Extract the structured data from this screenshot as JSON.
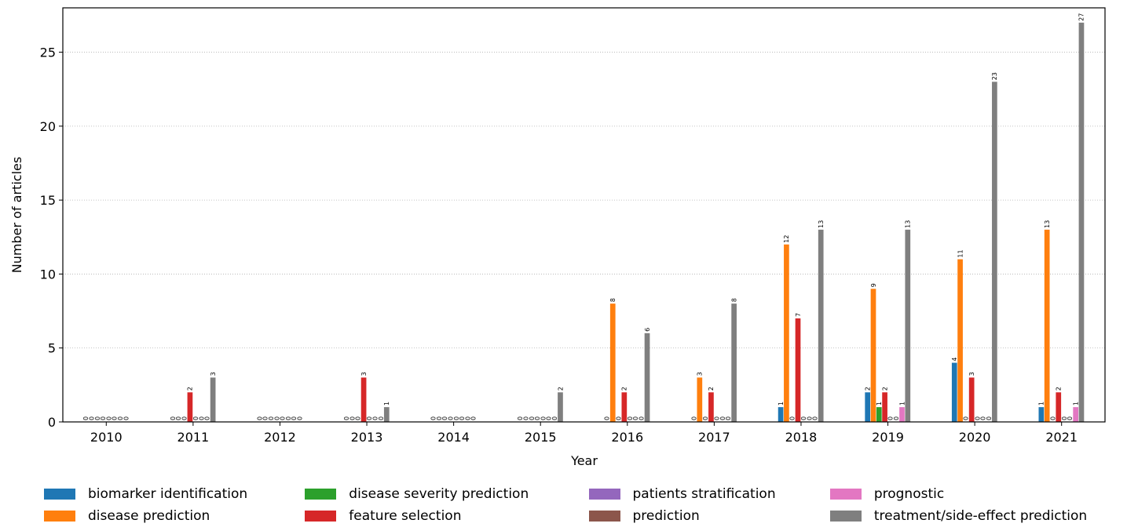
{
  "chart_data": {
    "type": "bar",
    "xlabel": "Year",
    "ylabel": "Number of articles",
    "ylim": [
      0,
      28
    ],
    "yticks": [
      0,
      5,
      10,
      15,
      20,
      25
    ],
    "grid": "y-dotted",
    "legend_placement": "bottom",
    "categories": [
      "2010",
      "2011",
      "2012",
      "2013",
      "2014",
      "2015",
      "2016",
      "2017",
      "2018",
      "2019",
      "2020",
      "2021"
    ],
    "series": [
      {
        "name": "biomarker identification",
        "color": "#1f77b4",
        "values": [
          0,
          0,
          0,
          0,
          0,
          0,
          0,
          0,
          1,
          2,
          4,
          1
        ]
      },
      {
        "name": "disease prediction",
        "color": "#ff7f0e",
        "values": [
          0,
          0,
          0,
          0,
          0,
          0,
          8,
          3,
          12,
          9,
          11,
          13
        ]
      },
      {
        "name": "disease severity prediction",
        "color": "#2ca02c",
        "values": [
          0,
          0,
          0,
          0,
          0,
          0,
          0,
          0,
          0,
          1,
          0,
          0
        ]
      },
      {
        "name": "feature selection",
        "color": "#d62728",
        "values": [
          0,
          2,
          0,
          3,
          0,
          0,
          2,
          2,
          7,
          2,
          3,
          2
        ]
      },
      {
        "name": "patients stratification",
        "color": "#9467bd",
        "values": [
          0,
          0,
          0,
          0,
          0,
          0,
          0,
          0,
          0,
          0,
          0,
          0
        ]
      },
      {
        "name": "prediction",
        "color": "#8c564b",
        "values": [
          0,
          0,
          0,
          0,
          0,
          0,
          0,
          0,
          0,
          0,
          0,
          0
        ]
      },
      {
        "name": "prognostic",
        "color": "#e377c2",
        "values": [
          0,
          0,
          0,
          0,
          0,
          0,
          0,
          0,
          0,
          1,
          0,
          1
        ]
      },
      {
        "name": "treatment/side-effect prediction",
        "color": "#7f7f7f",
        "values": [
          0,
          3,
          0,
          1,
          0,
          2,
          6,
          8,
          13,
          13,
          23,
          27
        ]
      }
    ]
  },
  "legend": {
    "rows": [
      [
        0,
        2,
        4,
        6
      ],
      [
        1,
        3,
        5,
        7
      ]
    ]
  }
}
